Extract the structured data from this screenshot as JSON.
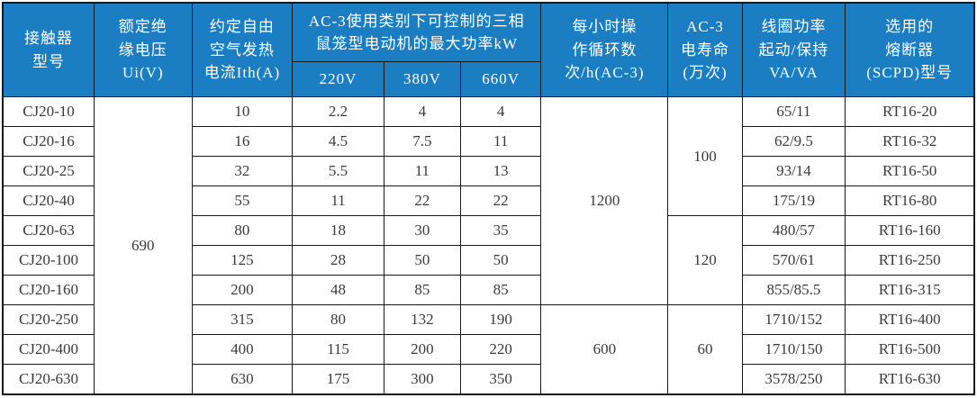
{
  "colors": {
    "header_bg": "#1b7ec2",
    "header_text": "#ffffff",
    "body_text": "#3a3a3a",
    "border": "#1a1a1a",
    "background": "#ffffff"
  },
  "header": {
    "model": [
      "接触器",
      "型号"
    ],
    "ui": [
      "额定绝",
      "缘电压",
      "Ui(V)"
    ],
    "ith": [
      "约定自由",
      "空气发热",
      "电流Ith(A)"
    ],
    "ac3_group": [
      "AC-3使用类别下可控制的三相",
      "鼠笼型电动机的最大功率kW"
    ],
    "sub_220": "220V",
    "sub_380": "380V",
    "sub_660": "660V",
    "cycles": [
      "每小时操",
      "作循环数",
      "次/h(AC-3)"
    ],
    "life": [
      "AC-3",
      "电寿命",
      "(万次)"
    ],
    "coil": [
      "线圈功率",
      "起动/保持",
      "VA/VA"
    ],
    "fuse": [
      "选用的",
      "熔断器",
      "(SCPD)型号"
    ]
  },
  "body": {
    "ui_merge": {
      "value": "690",
      "rows": 10
    },
    "cycles_merge": [
      {
        "value": "1200",
        "start": 0,
        "rows": 7
      },
      {
        "value": "600",
        "start": 7,
        "rows": 3
      }
    ],
    "life_merge": [
      {
        "value": "100",
        "start": 0,
        "rows": 4
      },
      {
        "value": "120",
        "start": 4,
        "rows": 3
      },
      {
        "value": "60",
        "start": 7,
        "rows": 3
      }
    ],
    "rows": [
      {
        "model": "CJ20-10",
        "ith": "10",
        "p220": "2.2",
        "p380": "4",
        "p660": "4",
        "coil": "65/11",
        "fuse": "RT16-20"
      },
      {
        "model": "CJ20-16",
        "ith": "16",
        "p220": "4.5",
        "p380": "7.5",
        "p660": "11",
        "coil": "62/9.5",
        "fuse": "RT16-32"
      },
      {
        "model": "CJ20-25",
        "ith": "32",
        "p220": "5.5",
        "p380": "11",
        "p660": "13",
        "coil": "93/14",
        "fuse": "RT16-50"
      },
      {
        "model": "CJ20-40",
        "ith": "55",
        "p220": "11",
        "p380": "22",
        "p660": "22",
        "coil": "175/19",
        "fuse": "RT16-80"
      },
      {
        "model": "CJ20-63",
        "ith": "80",
        "p220": "18",
        "p380": "30",
        "p660": "35",
        "coil": "480/57",
        "fuse": "RT16-160"
      },
      {
        "model": "CJ20-100",
        "ith": "125",
        "p220": "28",
        "p380": "50",
        "p660": "50",
        "coil": "570/61",
        "fuse": "RT16-250"
      },
      {
        "model": "CJ20-160",
        "ith": "200",
        "p220": "48",
        "p380": "85",
        "p660": "85",
        "coil": "855/85.5",
        "fuse": "RT16-315"
      },
      {
        "model": "CJ20-250",
        "ith": "315",
        "p220": "80",
        "p380": "132",
        "p660": "190",
        "coil": "1710/152",
        "fuse": "RT16-400"
      },
      {
        "model": "CJ20-400",
        "ith": "400",
        "p220": "115",
        "p380": "200",
        "p660": "220",
        "coil": "1710/150",
        "fuse": "RT16-500"
      },
      {
        "model": "CJ20-630",
        "ith": "630",
        "p220": "175",
        "p380": "300",
        "p660": "350",
        "coil": "3578/250",
        "fuse": "RT16-630"
      }
    ]
  }
}
